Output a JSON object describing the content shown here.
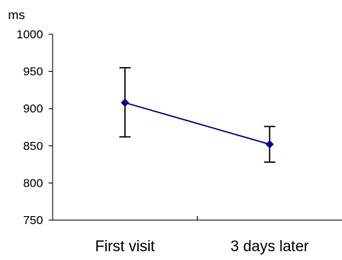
{
  "chart_data": {
    "type": "line",
    "ylabel": "ms",
    "ylim": [
      750,
      1000
    ],
    "yticks": [
      750,
      800,
      850,
      900,
      950,
      1000
    ],
    "ytick_labels": [
      "750",
      "800",
      "850",
      "900",
      "950",
      "1000"
    ],
    "categories": [
      "First visit",
      "3 days later"
    ],
    "series": [
      {
        "values": [
          908,
          852
        ],
        "error_low": [
          862,
          828
        ],
        "error_high": [
          955,
          876
        ]
      }
    ],
    "grid": false,
    "line_color": "#00008B",
    "marker": "diamond"
  }
}
